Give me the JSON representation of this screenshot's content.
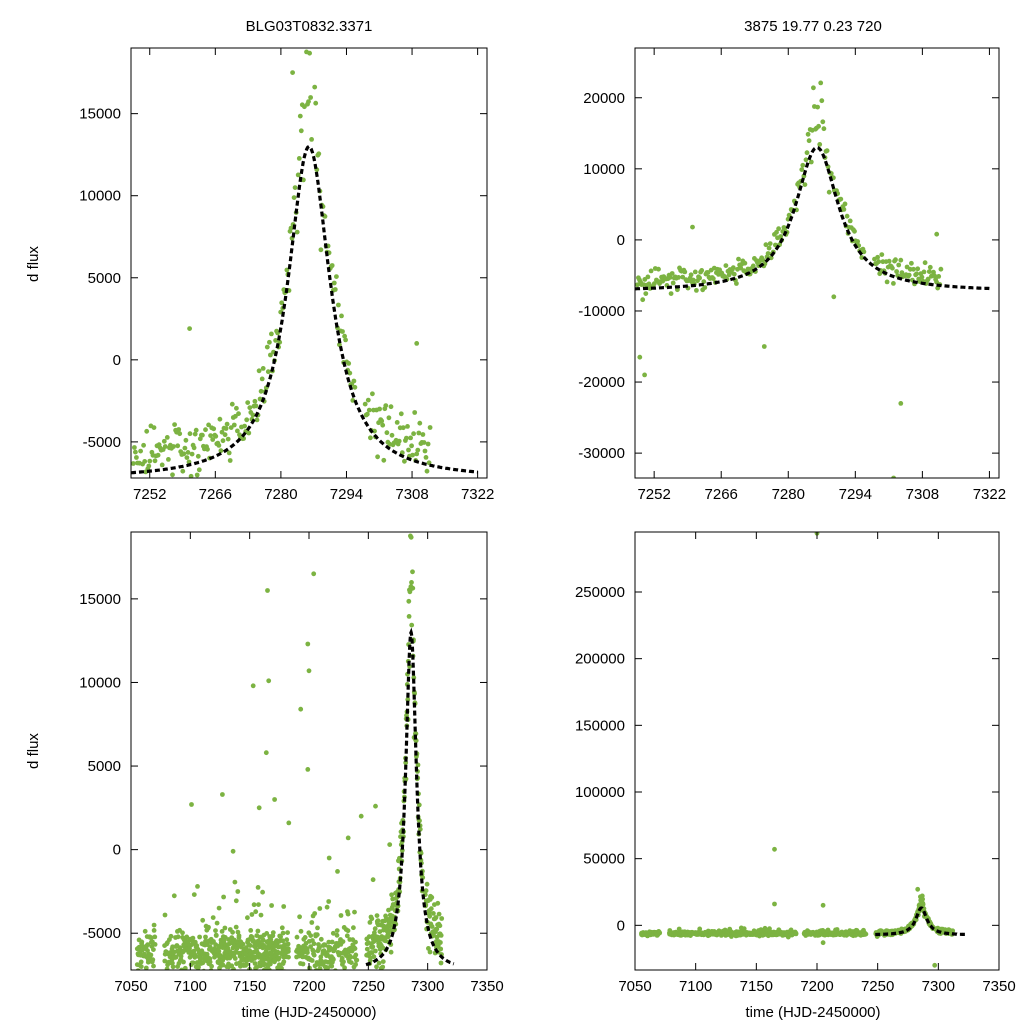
{
  "figure": {
    "left_title": "BLG03T0832.3371",
    "right_title": "3875  19.77  0.23  720",
    "ylabel": "d flux",
    "xlabel": "time (HJD-2450000)"
  },
  "colors": {
    "points": "#7cb342",
    "model": "#000000"
  },
  "chart_data": [
    {
      "type": "scatter",
      "panel": "top-left",
      "title": "BLG03T0832.3371",
      "ylabel": "d flux",
      "xlabel": "",
      "xlim": [
        7248,
        7324
      ],
      "ylim": [
        -7200,
        19000
      ],
      "xticks": [
        7252,
        7266,
        7280,
        7294,
        7308,
        7322
      ],
      "yticks": [
        -5000,
        0,
        5000,
        10000,
        15000
      ],
      "model": {
        "t0": 7286,
        "peak": 13000,
        "tau": 5.5,
        "baseline": -7300
      },
      "outliers": [
        [
          7260.5,
          1900
        ],
        [
          7309,
          1000
        ],
        [
          7282.5,
          17500
        ]
      ]
    },
    {
      "type": "scatter",
      "panel": "top-right",
      "title": "3875  19.77  0.23  720",
      "ylabel": "",
      "xlabel": "",
      "xlim": [
        7248,
        7324
      ],
      "ylim": [
        -33500,
        27000
      ],
      "xticks": [
        7252,
        7266,
        7280,
        7294,
        7308,
        7322
      ],
      "yticks": [
        -30000,
        -20000,
        -10000,
        0,
        10000,
        20000
      ],
      "model": {
        "t0": 7286,
        "peak": 13000,
        "tau": 5.5,
        "baseline": -7300
      },
      "outliers": [
        [
          7249,
          -16500
        ],
        [
          7250,
          -19000
        ],
        [
          7260,
          1800
        ],
        [
          7275,
          -15000
        ],
        [
          7303.5,
          -23000
        ],
        [
          7302,
          -33500
        ],
        [
          7311,
          800
        ],
        [
          7289.5,
          -8000
        ]
      ]
    },
    {
      "type": "scatter",
      "panel": "bottom-left",
      "title": "",
      "ylabel": "d flux",
      "xlabel": "time (HJD-2450000)",
      "xlim": [
        7050,
        7350
      ],
      "ylim": [
        -7200,
        19000
      ],
      "xticks": [
        7050,
        7100,
        7150,
        7200,
        7250,
        7300,
        7350
      ],
      "yticks": [
        -5000,
        0,
        5000,
        10000,
        15000
      ],
      "model": {
        "t0": 7286,
        "peak": 13000,
        "tau": 5.5,
        "baseline": -7300
      },
      "outliers": [
        [
          7101,
          2700
        ],
        [
          7127,
          3300
        ],
        [
          7136,
          -100
        ],
        [
          7165,
          15500
        ],
        [
          7166,
          10100
        ],
        [
          7153,
          9800
        ],
        [
          7164,
          5800
        ],
        [
          7204,
          16500
        ],
        [
          7199,
          12300
        ],
        [
          7200,
          10700
        ],
        [
          7193,
          8400
        ],
        [
          7199,
          4800
        ],
        [
          7171,
          3000
        ],
        [
          7183,
          1600
        ],
        [
          7233,
          700
        ],
        [
          7244,
          2000
        ],
        [
          7256,
          2600
        ],
        [
          7268,
          300
        ],
        [
          7158,
          2500
        ],
        [
          7217,
          -500
        ],
        [
          7106,
          -2200
        ],
        [
          7224,
          -1300
        ],
        [
          7254,
          -1800
        ]
      ]
    },
    {
      "type": "scatter",
      "panel": "bottom-right",
      "title": "",
      "ylabel": "",
      "xlabel": "time (HJD-2450000)",
      "xlim": [
        7050,
        7350
      ],
      "ylim": [
        -33500,
        295000
      ],
      "xticks": [
        7050,
        7100,
        7150,
        7200,
        7250,
        7300,
        7350
      ],
      "yticks": [
        0,
        50000,
        100000,
        150000,
        200000,
        250000
      ],
      "model": {
        "t0": 7286,
        "peak": 13000,
        "tau": 5.5,
        "baseline": -7300
      },
      "outliers": [
        [
          7165,
          57000
        ],
        [
          7200,
          294000
        ],
        [
          7165,
          16000
        ],
        [
          7205,
          15000
        ],
        [
          7297,
          -30000
        ],
        [
          7283,
          27000
        ],
        [
          7205,
          -13000
        ]
      ]
    }
  ]
}
